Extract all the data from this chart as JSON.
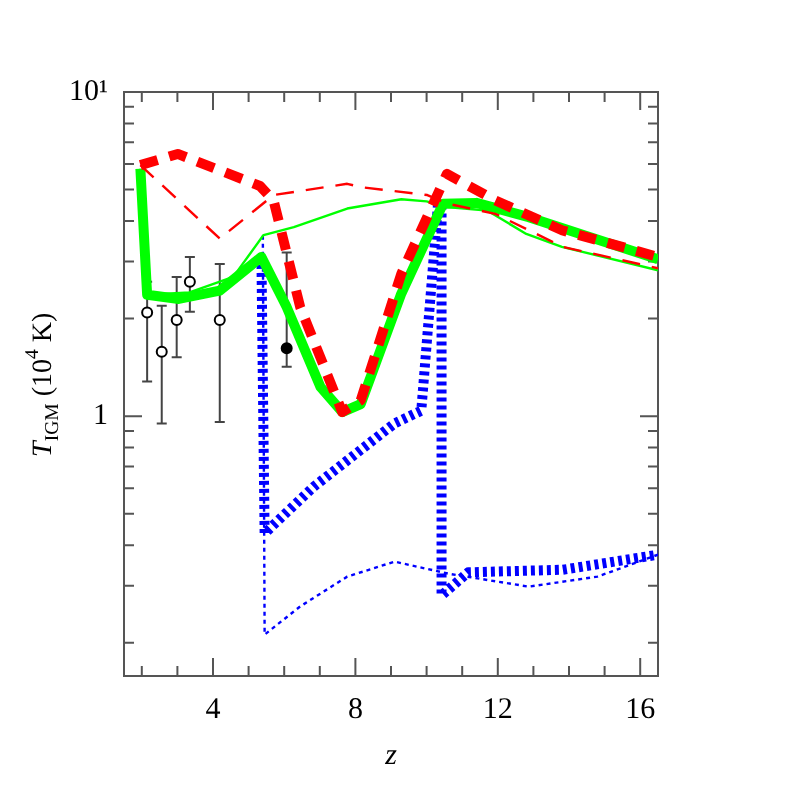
{
  "chart_data": {
    "type": "line",
    "xlabel": "z",
    "ylabel": "T$_{IGM}$ (10$^{4}$ K)",
    "log": "y",
    "grid": false,
    "legend": false,
    "xlim": [
      1.5,
      16.5
    ],
    "ylim": [
      0.158,
      10
    ],
    "xticks": [
      {
        "value": 2,
        "label": null
      },
      {
        "value": 3,
        "label": null
      },
      4,
      {
        "value": 5,
        "label": null
      },
      {
        "value": 6,
        "label": null
      },
      {
        "value": 7,
        "label": null
      },
      8,
      {
        "value": 9,
        "label": null
      },
      {
        "value": 10,
        "label": null
      },
      {
        "value": 11,
        "label": null
      },
      12,
      {
        "value": 13,
        "label": null
      },
      {
        "value": 14,
        "label": null
      },
      {
        "value": 15,
        "label": null
      },
      16
    ],
    "yticks": [
      {
        "value": 0.2,
        "label": null
      },
      {
        "value": 0.3,
        "label": null
      },
      {
        "value": 0.4,
        "label": null
      },
      {
        "value": 0.5,
        "label": null
      },
      {
        "value": 0.6,
        "label": null
      },
      {
        "value": 0.7,
        "label": null
      },
      {
        "value": 0.8,
        "label": null
      },
      {
        "value": 0.9,
        "label": null
      },
      1,
      {
        "value": 2,
        "label": null
      },
      {
        "value": 3,
        "label": null
      },
      {
        "value": 4,
        "label": null
      },
      {
        "value": 5,
        "label": null
      },
      {
        "value": 6,
        "label": null
      },
      {
        "value": 7,
        "label": null
      },
      {
        "value": 8,
        "label": null
      },
      {
        "value": 9,
        "label": null
      },
      {
        "value": 10,
        "label": "10¹"
      }
    ],
    "series": [
      {
        "color": "#ff0000",
        "line_style": "dashed",
        "marker": "none",
        "x": [
          1.96,
          3.01,
          5.32,
          5.7,
          6.45,
          7.63,
          8.15,
          9.29,
          10.57,
          11.93,
          13.82,
          16.5
        ],
        "values": [
          5.95,
          6.44,
          5.13,
          4.63,
          2.17,
          1.03,
          1.12,
          2.75,
          5.59,
          4.63,
          3.74,
          3.1
        ]
      },
      {
        "color": "#ff0000",
        "line_style": "dashed",
        "marker": "none",
        "x": [
          1.96,
          4.19,
          5.7,
          7.77,
          8.15,
          10.02,
          10.6,
          11.93,
          13.82,
          16.5
        ],
        "values": [
          5.95,
          3.53,
          4.81,
          5.21,
          5.09,
          4.81,
          4.52,
          4.21,
          3.33,
          2.86
        ]
      },
      {
        "color": "#00ff00",
        "line_style": "solid",
        "marker": "none",
        "x": [
          1.96,
          2.15,
          3.04,
          4.19,
          5.36,
          6.07,
          7.02,
          7.63,
          8.15,
          9.29,
          10.46,
          11.4,
          12.87,
          16.5
        ],
        "values": [
          5.8,
          2.37,
          2.3,
          2.44,
          3.1,
          2.17,
          1.23,
          1.03,
          1.09,
          2.39,
          4.52,
          4.55,
          4.11,
          3.05
        ]
      },
      {
        "color": "#00ff00",
        "line_style": "solid",
        "marker": "none",
        "x": [
          1.96,
          2.15,
          3.34,
          4.57,
          5.42,
          6.27,
          7.77,
          9.29,
          10.0,
          10.57,
          11.7,
          12.8,
          13.8,
          16.5
        ],
        "values": [
          5.8,
          2.37,
          2.41,
          2.69,
          3.62,
          3.83,
          4.37,
          4.67,
          4.6,
          4.42,
          4.31,
          3.65,
          3.33,
          2.82
        ]
      },
      {
        "color": "#0000ff",
        "line_style": "dotted",
        "marker": "none",
        "x": [
          5.36,
          5.45,
          6.83,
          9.1,
          9.85,
          10.32,
          10.42,
          10.42,
          11.17,
          13.82,
          16.5
        ],
        "values": [
          3.1,
          0.435,
          0.606,
          0.95,
          1.04,
          4.5,
          4.5,
          0.28,
          0.33,
          0.336,
          0.374
        ]
      },
      {
        "color": "#0000ff",
        "line_style": "dotted",
        "marker": "none",
        "x": [
          5.4,
          5.45,
          6.45,
          7.77,
          9.1,
          10.6,
          12.87,
          14.8,
          16.5
        ],
        "values": [
          3.6,
          0.212,
          0.259,
          0.32,
          0.356,
          0.327,
          0.298,
          0.32,
          0.374
        ]
      },
      {
        "type": "scatter",
        "color": "#000000",
        "marker": "circle",
        "x": [
          2.15,
          2.56,
          2.98,
          3.35,
          4.19
        ],
        "values": [
          2.09,
          1.58,
          1.98,
          2.6,
          1.98
        ],
        "errors": [
          [
            1.28,
            2.6
          ],
          [
            0.95,
            2.19
          ],
          [
            1.52,
            2.69
          ],
          [
            2.1,
            3.1
          ],
          [
            0.96,
            2.95
          ]
        ]
      },
      {
        "type": "scatter",
        "color": "#000000",
        "marker": "circle",
        "x": [
          6.07
        ],
        "values": [
          1.62
        ],
        "errors": [
          [
            1.42,
            3.2
          ]
        ]
      }
    ]
  }
}
